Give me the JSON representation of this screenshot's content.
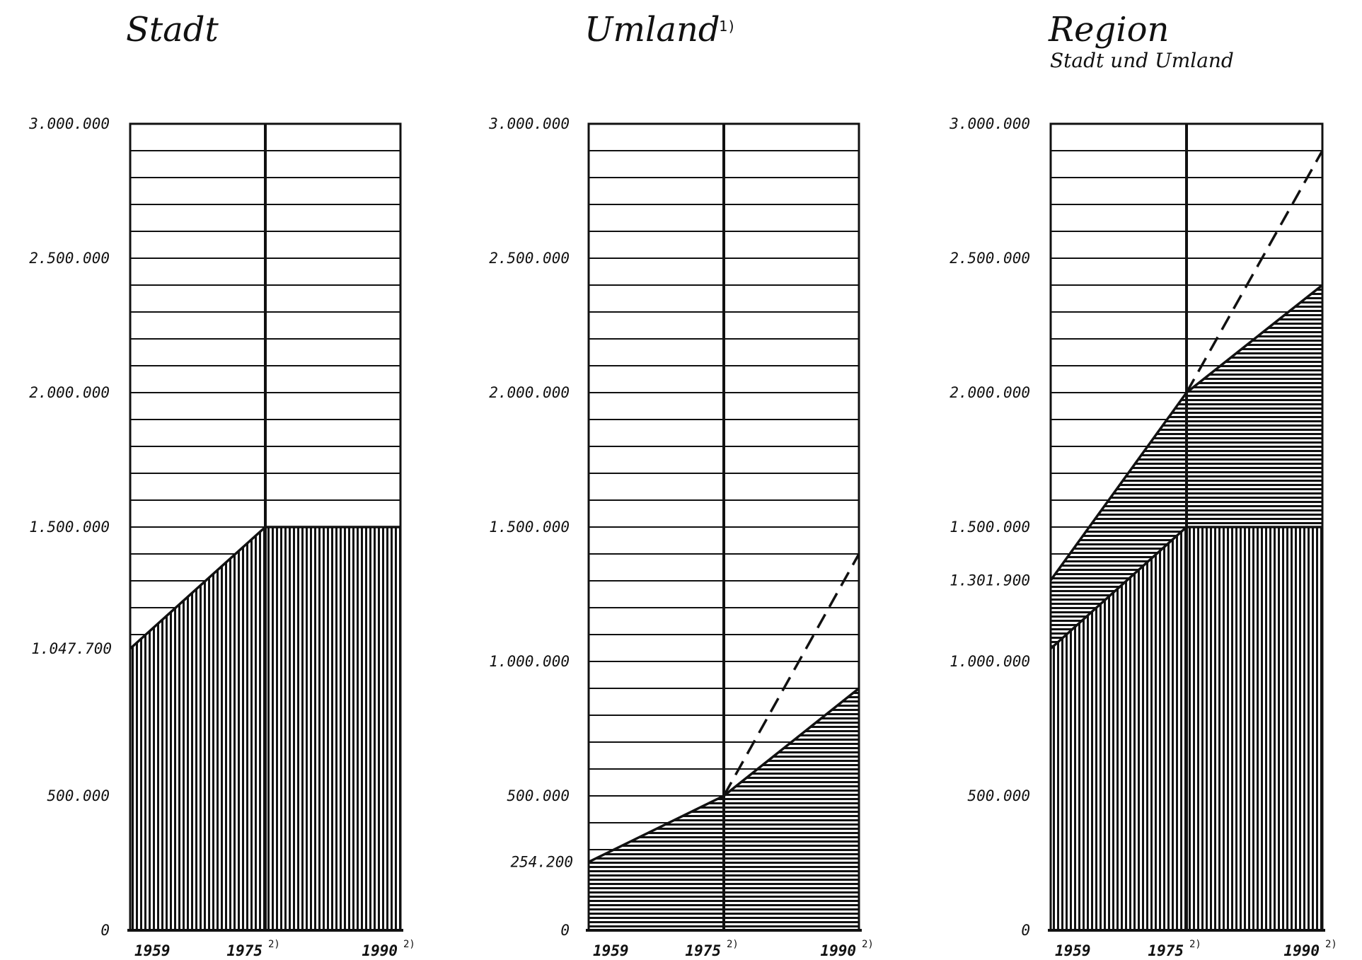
{
  "colors": {
    "ink": "#111111",
    "paper": "#ffffff"
  },
  "chart_data": [
    {
      "type": "area",
      "title": "Stadt",
      "title_note": "",
      "subtitle": "",
      "x": [
        "1959",
        "1975",
        "1990"
      ],
      "x_notes": [
        "",
        "2)",
        "2)"
      ],
      "ylim": [
        0,
        3000000
      ],
      "yticks": [
        "0",
        "500.000",
        "1.500.000",
        "2.000.000",
        "2.500.000",
        "3.000.000"
      ],
      "ytick_values": [
        0,
        500000,
        1500000,
        2000000,
        2500000,
        3000000
      ],
      "value_labels": [
        "1.047.700"
      ],
      "value_label_values": [
        1047700
      ],
      "grid": true,
      "series": [
        {
          "values": [
            1047700,
            1500000,
            1500000
          ],
          "style": "vertical-hatch",
          "stack": "base"
        }
      ]
    },
    {
      "type": "area",
      "title": "Umland",
      "title_note": "1)",
      "subtitle": "",
      "x": [
        "1959",
        "1975",
        "1990"
      ],
      "x_notes": [
        "",
        "2)",
        "2)"
      ],
      "ylim": [
        0,
        3000000
      ],
      "yticks": [
        "0",
        "500.000",
        "1.000.000",
        "1.500.000",
        "2.000.000",
        "2.500.000",
        "3.000.000"
      ],
      "ytick_values": [
        0,
        500000,
        1000000,
        1500000,
        2000000,
        2500000,
        3000000
      ],
      "value_labels": [
        "254.200"
      ],
      "value_label_values": [
        254200
      ],
      "grid": true,
      "series": [
        {
          "values": [
            254200,
            500000,
            900000
          ],
          "style": "horizontal-hatch",
          "stack": "base"
        },
        {
          "values": [
            null,
            500000,
            1400000
          ],
          "style": "dashed-line"
        }
      ]
    },
    {
      "type": "area",
      "title": "Region",
      "title_note": "",
      "subtitle": "Stadt und Umland",
      "x": [
        "1959",
        "1975",
        "1990"
      ],
      "x_notes": [
        "",
        "2)",
        "2)"
      ],
      "ylim": [
        0,
        3000000
      ],
      "yticks": [
        "0",
        "500.000",
        "1.000.000",
        "1.500.000",
        "2.000.000",
        "2.500.000",
        "3.000.000"
      ],
      "ytick_values": [
        0,
        500000,
        1000000,
        1500000,
        2000000,
        2500000,
        3000000
      ],
      "value_labels": [
        "1.301.900"
      ],
      "value_label_values": [
        1301900
      ],
      "grid": true,
      "series": [
        {
          "values": [
            1047700,
            1500000,
            1500000
          ],
          "style": "vertical-hatch",
          "stack": "base"
        },
        {
          "values": [
            1301900,
            2000000,
            2400000
          ],
          "style": "horizontal-hatch",
          "stack": "top"
        },
        {
          "values": [
            null,
            2000000,
            2900000
          ],
          "style": "dashed-line"
        }
      ]
    }
  ]
}
